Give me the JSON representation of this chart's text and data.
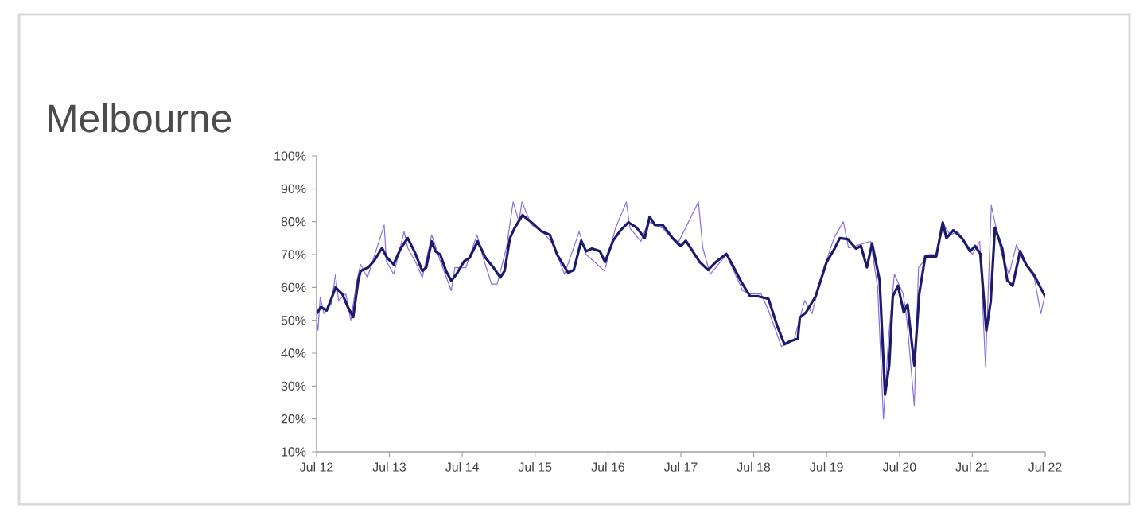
{
  "chart_data": {
    "type": "line",
    "title": "Melbourne",
    "xlim": [
      "2012-07-01",
      "2022-07-01"
    ],
    "ylim": [
      10,
      100
    ],
    "xticks": [
      {
        "value": "2012-07-01",
        "label": "Jul 12"
      },
      {
        "value": "2013-07-01",
        "label": "Jul 13"
      },
      {
        "value": "2014-07-01",
        "label": "Jul 14"
      },
      {
        "value": "2015-07-01",
        "label": "Jul 15"
      },
      {
        "value": "2016-07-01",
        "label": "Jul 16"
      },
      {
        "value": "2017-07-01",
        "label": "Jul 17"
      },
      {
        "value": "2018-07-01",
        "label": "Jul 18"
      },
      {
        "value": "2019-07-01",
        "label": "Jul 19"
      },
      {
        "value": "2020-07-01",
        "label": "Jul 20"
      },
      {
        "value": "2021-07-01",
        "label": "Jul 21"
      },
      {
        "value": "2022-07-01",
        "label": "Jul 22"
      }
    ],
    "yticks": [
      {
        "value": 10,
        "label": "10%"
      },
      {
        "value": 20,
        "label": "20%"
      },
      {
        "value": 30,
        "label": "30%"
      },
      {
        "value": 40,
        "label": "40%"
      },
      {
        "value": 50,
        "label": "50%"
      },
      {
        "value": 60,
        "label": "60%"
      },
      {
        "value": 70,
        "label": "70%"
      },
      {
        "value": 80,
        "label": "80%"
      },
      {
        "value": 90,
        "label": "90%"
      },
      {
        "value": 100,
        "label": "100%"
      }
    ],
    "grid": false,
    "marker": "none",
    "line_style": "solid",
    "series": [
      {
        "color": "#8a6ee0",
        "x": [
          "2012-07-01",
          "2012-07-08",
          "2012-07-19",
          "2012-08-07",
          "2012-09-13",
          "2012-10-04",
          "2012-10-19",
          "2012-11-25",
          "2012-12-20",
          "2013-01-19",
          "2013-02-07",
          "2013-03-13",
          "2013-04-19",
          "2013-06-05",
          "2013-06-16",
          "2013-07-22",
          "2013-09-13",
          "2013-10-01",
          "2013-11-07",
          "2013-12-13",
          "2014-01-19",
          "2014-01-29",
          "2014-03-13",
          "2014-05-07",
          "2014-05-25",
          "2014-07-19",
          "2014-09-13",
          "2014-10-19",
          "2014-11-25",
          "2014-12-23",
          "2015-02-07",
          "2015-03-13",
          "2015-04-11",
          "2015-04-26",
          "2015-06-13",
          "2015-08-07",
          "2015-10-01",
          "2015-11-25",
          "2016-02-07",
          "2016-03-13",
          "2016-06-13",
          "2016-08-07",
          "2016-10-01",
          "2016-10-19",
          "2016-12-13",
          "2017-01-19",
          "2017-04-01",
          "2017-06-13",
          "2017-09-27",
          "2017-10-19",
          "2017-11-25",
          "2018-02-14",
          "2018-05-07",
          "2018-06-13",
          "2018-08-07",
          "2018-09-13",
          "2018-11-17",
          "2019-01-19",
          "2019-03-13",
          "2019-04-19",
          "2019-06-13",
          "2019-08-07",
          "2019-09-23",
          "2019-10-19",
          "2019-12-13",
          "2020-02-07",
          "2020-03-13",
          "2020-04-11",
          "2020-05-07",
          "2020-06-05",
          "2020-07-19",
          "2020-08-07",
          "2020-09-13",
          "2020-10-04",
          "2020-11-25",
          "2021-01-01",
          "2021-02-07",
          "2021-03-13",
          "2021-04-19",
          "2021-05-25",
          "2021-07-01",
          "2021-08-07",
          "2021-09-05",
          "2021-10-04",
          "2021-11-25",
          "2022-01-01",
          "2022-02-07",
          "2022-03-13",
          "2022-05-07",
          "2022-06-09",
          "2022-07-01"
        ],
        "values": [
          50,
          47,
          57,
          52,
          55,
          64,
          56,
          58,
          50,
          62,
          67,
          63,
          70,
          79,
          68,
          64,
          77,
          72,
          68,
          63,
          73,
          76,
          68,
          59,
          66,
          66,
          76,
          68,
          61,
          61,
          72,
          86,
          80,
          86,
          79,
          77,
          73,
          64,
          77,
          70,
          65,
          78,
          86,
          78,
          74,
          80,
          78,
          73,
          86,
          72,
          64,
          70,
          59,
          58,
          58,
          53,
          42,
          44,
          56,
          52,
          65,
          75,
          80,
          72,
          73,
          74,
          60,
          20,
          45,
          64,
          58,
          50,
          24,
          66,
          70,
          70,
          79,
          76,
          77,
          74,
          70,
          74,
          36,
          85,
          70,
          64,
          73,
          68,
          63,
          52,
          58
        ]
      },
      {
        "color": "#1c1a6b",
        "x": [
          "2012-07-01",
          "2012-07-22",
          "2012-08-21",
          "2012-09-16",
          "2012-10-04",
          "2012-11-07",
          "2012-12-05",
          "2013-01-01",
          "2013-01-26",
          "2013-02-07",
          "2013-03-16",
          "2013-04-15",
          "2013-05-25",
          "2013-06-20",
          "2013-07-22",
          "2013-08-28",
          "2013-10-01",
          "2013-11-03",
          "2013-12-13",
          "2014-01-01",
          "2014-01-29",
          "2014-02-17",
          "2014-03-13",
          "2014-04-11",
          "2014-05-07",
          "2014-06-02",
          "2014-07-11",
          "2014-08-07",
          "2014-09-16",
          "2014-10-26",
          "2014-12-05",
          "2015-01-08",
          "2015-01-29",
          "2015-02-25",
          "2015-03-20",
          "2015-04-29",
          "2015-06-09",
          "2015-08-03",
          "2015-09-13",
          "2015-10-19",
          "2015-12-13",
          "2016-01-11",
          "2016-02-17",
          "2016-03-13",
          "2016-04-11",
          "2016-05-21",
          "2016-06-16",
          "2016-07-26",
          "2016-09-02",
          "2016-10-11",
          "2016-11-21",
          "2017-01-01",
          "2017-01-26",
          "2017-02-21",
          "2017-04-01",
          "2017-05-21",
          "2017-07-01",
          "2017-07-26",
          "2017-08-21",
          "2017-10-04",
          "2017-11-14",
          "2017-12-23",
          "2018-02-14",
          "2018-03-23",
          "2018-05-03",
          "2018-06-13",
          "2018-07-22",
          "2018-09-13",
          "2018-10-26",
          "2018-12-02",
          "2018-12-27",
          "2019-02-07",
          "2019-02-17",
          "2019-03-20",
          "2019-05-07",
          "2019-07-01",
          "2019-08-10",
          "2019-09-05",
          "2019-10-15",
          "2019-11-25",
          "2019-12-20",
          "2020-01-19",
          "2020-02-14",
          "2020-03-23",
          "2020-04-19",
          "2020-05-10",
          "2020-05-28",
          "2020-06-23",
          "2020-07-22",
          "2020-08-10",
          "2020-09-13",
          "2020-10-08",
          "2020-11-07",
          "2021-01-01",
          "2021-02-03",
          "2021-02-21",
          "2021-03-27",
          "2021-05-10",
          "2021-06-20",
          "2021-07-15",
          "2021-08-10",
          "2021-09-09",
          "2021-10-01",
          "2021-10-22",
          "2021-11-28",
          "2021-12-23",
          "2022-01-19",
          "2022-02-25",
          "2022-03-27",
          "2022-05-07",
          "2022-06-16",
          "2022-07-01"
        ],
        "values": [
          52,
          54,
          53,
          57,
          60,
          58,
          54,
          51,
          62,
          65,
          66,
          68,
          72,
          69,
          67,
          72,
          75,
          71,
          65,
          66,
          74,
          71,
          70,
          65,
          62,
          64,
          68,
          69,
          74,
          69,
          66,
          63,
          65,
          75,
          78,
          82,
          80,
          77,
          76,
          70,
          64.5,
          65.3,
          74.2,
          71,
          71.8,
          71,
          67.7,
          74.2,
          77.4,
          79.8,
          78.2,
          75,
          81.5,
          79,
          79,
          75,
          72.6,
          74.2,
          71.8,
          67.7,
          65.3,
          67.7,
          70.2,
          66.1,
          61.3,
          57.3,
          57.3,
          56.5,
          48.4,
          42.7,
          43.5,
          44.4,
          50.8,
          52.4,
          57.3,
          67.7,
          71.8,
          75,
          74.7,
          71.8,
          72.6,
          66.1,
          73.4,
          62.1,
          27.4,
          36.3,
          57.3,
          60.5,
          52.4,
          54.8,
          36.3,
          58.1,
          69.4,
          69.4,
          79.8,
          75,
          77.4,
          75,
          71,
          72.6,
          70.2,
          46.9,
          55.7,
          78.2,
          71.8,
          62.1,
          60.5,
          71,
          67,
          63.7,
          58.9,
          57.3
        ]
      }
    ]
  }
}
